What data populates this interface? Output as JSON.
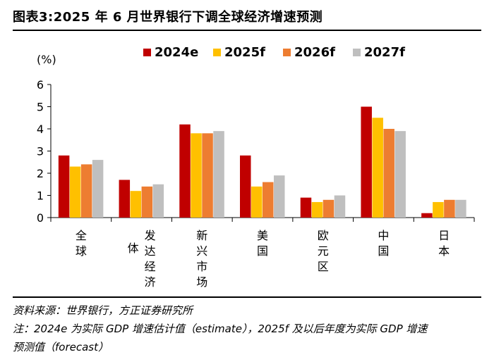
{
  "title": "图表3:2025 年 6 月世界银行下调全球经济增速预测",
  "source": "资料来源：世界银行，方正证券研究所",
  "note_line1": "注：2024e 为实际 GDP 增速估计值（estimate），2025f 及以后年度为实际 GDP 增速",
  "note_line2": "预测值（forecast）",
  "colors": {
    "s2024": "#c00000",
    "s2025": "#ffc000",
    "s2026": "#ed7d31",
    "s2027": "#bfbfbf"
  },
  "chart_data": {
    "type": "bar",
    "unit_label": "(%)",
    "categories": [
      "全球",
      "发达经济体",
      "新兴市场",
      "美国",
      "欧元区",
      "中国",
      "日本"
    ],
    "series": [
      {
        "name": "2024e",
        "values": [
          2.8,
          1.7,
          4.2,
          2.8,
          0.9,
          5.0,
          0.2
        ]
      },
      {
        "name": "2025f",
        "values": [
          2.3,
          1.2,
          3.8,
          1.4,
          0.7,
          4.5,
          0.7
        ]
      },
      {
        "name": "2026f",
        "values": [
          2.4,
          1.4,
          3.8,
          1.6,
          0.8,
          4.0,
          0.8
        ]
      },
      {
        "name": "2027f",
        "values": [
          2.6,
          1.5,
          3.9,
          1.9,
          1.0,
          3.9,
          0.8
        ]
      }
    ],
    "ylim": [
      0,
      6
    ],
    "yticks": [
      0,
      1,
      2,
      3,
      4,
      5,
      6
    ],
    "grid": false,
    "legend_position": "top"
  }
}
